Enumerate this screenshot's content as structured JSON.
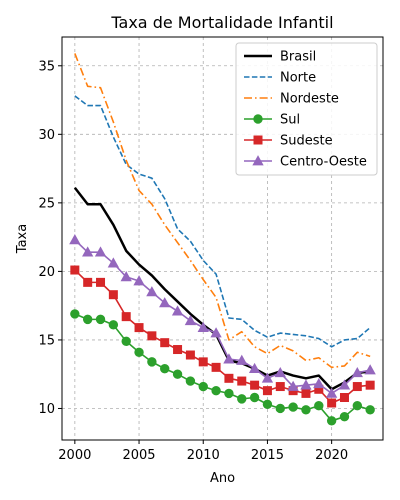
{
  "chart_data": {
    "type": "line",
    "title": "Taxa de Mortalidade Infantil",
    "xlabel": "Ano",
    "ylabel": "Taxa",
    "xlim": [
      1999,
      2024
    ],
    "ylim": [
      7.7,
      37.1
    ],
    "x_ticks": [
      2000,
      2005,
      2010,
      2015,
      2020
    ],
    "y_ticks": [
      10,
      15,
      20,
      25,
      30,
      35
    ],
    "grid": true,
    "legend_position": "upper right",
    "x": [
      2000,
      2001,
      2002,
      2003,
      2004,
      2005,
      2006,
      2007,
      2008,
      2009,
      2010,
      2011,
      2012,
      2013,
      2014,
      2015,
      2016,
      2017,
      2018,
      2019,
      2020,
      2021,
      2022,
      2023
    ],
    "series": [
      {
        "name": "Brasil",
        "color": "#000000",
        "dash": "solid",
        "width": 2.5,
        "marker": "none",
        "values": [
          26.1,
          24.9,
          24.9,
          23.4,
          21.5,
          20.5,
          19.7,
          18.7,
          17.8,
          16.9,
          16.1,
          15.4,
          13.5,
          13.3,
          12.9,
          12.4,
          12.7,
          12.4,
          12.2,
          12.4,
          11.4,
          11.9,
          12.6,
          12.7
        ]
      },
      {
        "name": "Norte",
        "color": "#1f77b4",
        "dash": "dashed",
        "width": 1.6,
        "marker": "none",
        "values": [
          32.8,
          32.1,
          32.1,
          29.8,
          27.8,
          27.1,
          26.8,
          25.3,
          23.1,
          22.2,
          20.8,
          19.8,
          16.6,
          16.5,
          15.7,
          15.2,
          15.5,
          15.4,
          15.3,
          15.1,
          14.5,
          15.0,
          15.1,
          15.9
        ]
      },
      {
        "name": "Nordeste",
        "color": "#ff7f0e",
        "dash": "dashdot",
        "width": 1.6,
        "marker": "none",
        "values": [
          35.9,
          33.5,
          33.4,
          30.9,
          28.1,
          25.9,
          24.9,
          23.4,
          22.1,
          20.8,
          19.4,
          18.1,
          15.0,
          15.6,
          14.5,
          14.0,
          14.6,
          14.2,
          13.5,
          13.7,
          13.0,
          13.1,
          14.1,
          13.8
        ]
      },
      {
        "name": "Sul",
        "color": "#2ca02c",
        "dash": "solid",
        "width": 1.6,
        "marker": "circle",
        "values": [
          16.9,
          16.5,
          16.5,
          16.1,
          14.9,
          14.1,
          13.4,
          12.9,
          12.5,
          12.0,
          11.6,
          11.3,
          11.1,
          10.7,
          10.8,
          10.3,
          10.0,
          10.1,
          9.9,
          10.2,
          9.1,
          9.4,
          10.2,
          9.9
        ]
      },
      {
        "name": "Sudeste",
        "color": "#d62728",
        "dash": "solid",
        "width": 1.6,
        "marker": "square",
        "values": [
          20.1,
          19.2,
          19.2,
          18.3,
          16.7,
          15.9,
          15.3,
          14.8,
          14.3,
          13.9,
          13.4,
          13.0,
          12.2,
          12.0,
          11.7,
          11.3,
          11.6,
          11.3,
          11.1,
          11.4,
          10.4,
          10.8,
          11.6,
          11.7
        ]
      },
      {
        "name": "Centro-Oeste",
        "color": "#9467bd",
        "dash": "solid",
        "width": 1.6,
        "marker": "triangle",
        "values": [
          22.3,
          21.4,
          21.4,
          20.6,
          19.6,
          19.3,
          18.5,
          17.7,
          17.1,
          16.4,
          15.9,
          15.5,
          13.6,
          13.5,
          12.9,
          12.2,
          12.6,
          11.6,
          11.7,
          11.8,
          11.1,
          11.7,
          12.6,
          12.8
        ]
      }
    ]
  }
}
